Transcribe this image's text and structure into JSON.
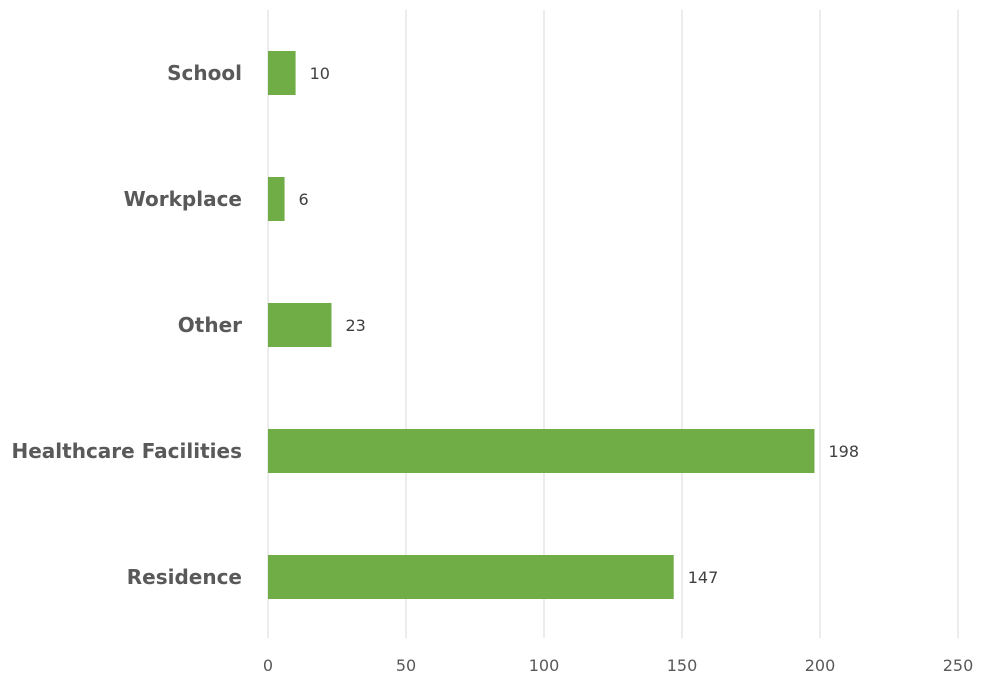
{
  "chart_data": {
    "type": "bar",
    "orientation": "horizontal",
    "categories": [
      "School",
      "Workplace",
      "Other",
      "Healthcare Facilities",
      "Residence"
    ],
    "values": [
      10,
      6,
      23,
      198,
      147
    ],
    "xlim": [
      0,
      250
    ],
    "x_ticks": [
      0,
      50,
      100,
      150,
      200,
      250
    ],
    "x_tick_labels": [
      "0",
      "50",
      "100",
      "150",
      "200",
      "250"
    ],
    "title": "",
    "xlabel": "",
    "ylabel": "",
    "grid": "vertical",
    "legend": "none",
    "bar_color": "#70ad47",
    "data_labels": [
      "10",
      "6",
      "23",
      "198",
      "147"
    ]
  }
}
